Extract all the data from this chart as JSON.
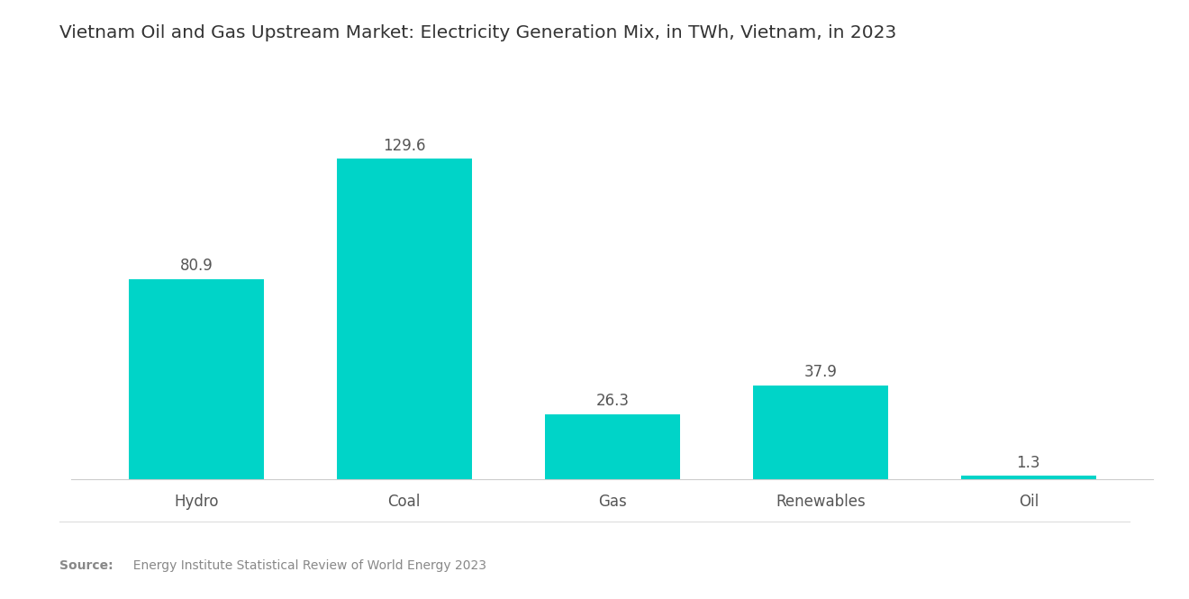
{
  "title": "Vietnam Oil and Gas Upstream Market: Electricity Generation Mix, in TWh, Vietnam, in 2023",
  "categories": [
    "Hydro",
    "Coal",
    "Gas",
    "Renewables",
    "Oil"
  ],
  "values": [
    80.9,
    129.6,
    26.3,
    37.9,
    1.3
  ],
  "bar_color": "#00D4C8",
  "background_color": "#ffffff",
  "title_fontsize": 14.5,
  "label_fontsize": 12,
  "value_fontsize": 12,
  "source_bold": "Source:",
  "source_normal": "  Energy Institute Statistical Review of World Energy 2023",
  "ylim": [
    0,
    155
  ],
  "bar_width": 0.65
}
